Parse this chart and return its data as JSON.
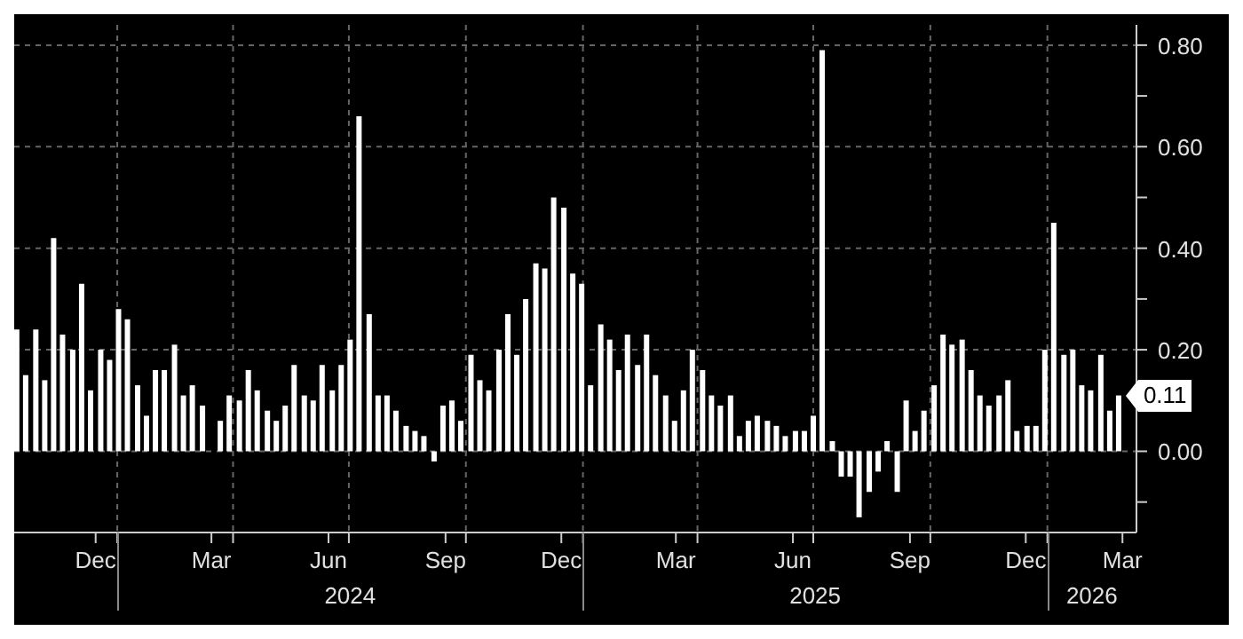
{
  "chart_data": {
    "type": "bar",
    "color": "#ffffff",
    "x": [
      "2023-10-14",
      "2023-10-21",
      "2023-10-29",
      "2023-11-05",
      "2023-11-12",
      "2023-11-19",
      "2023-11-27",
      "2023-12-04",
      "2023-12-11",
      "2023-12-19",
      "2023-12-26",
      "2024-01-02",
      "2024-01-09",
      "2024-01-17",
      "2024-01-24",
      "2024-01-31",
      "2024-02-07",
      "2024-02-15",
      "2024-02-22",
      "2024-02-29",
      "2024-03-08",
      "2024-03-15",
      "2024-03-22",
      "2024-03-29",
      "2024-04-06",
      "2024-04-13",
      "2024-04-20",
      "2024-04-28",
      "2024-05-05",
      "2024-05-12",
      "2024-05-19",
      "2024-05-27",
      "2024-06-03",
      "2024-06-10",
      "2024-06-18",
      "2024-06-25",
      "2024-07-02",
      "2024-07-09",
      "2024-07-17",
      "2024-07-24",
      "2024-07-31",
      "2024-08-07",
      "2024-08-15",
      "2024-08-22",
      "2024-08-29",
      "2024-09-06",
      "2024-09-13",
      "2024-09-20",
      "2024-09-27",
      "2024-10-05",
      "2024-10-12",
      "2024-10-19",
      "2024-10-27",
      "2024-11-03",
      "2024-11-10",
      "2024-11-17",
      "2024-11-25",
      "2024-12-02",
      "2024-12-09",
      "2024-12-17",
      "2024-12-24",
      "2024-12-31",
      "2025-01-07",
      "2025-01-15",
      "2025-01-22",
      "2025-01-29",
      "2025-02-05",
      "2025-02-13",
      "2025-02-20",
      "2025-02-27",
      "2025-03-07",
      "2025-03-14",
      "2025-03-21",
      "2025-03-28",
      "2025-04-05",
      "2025-04-12",
      "2025-04-19",
      "2025-04-27",
      "2025-05-04",
      "2025-05-11",
      "2025-05-18",
      "2025-05-26",
      "2025-06-02",
      "2025-06-09",
      "2025-06-17",
      "2025-06-24",
      "2025-07-01",
      "2025-07-08",
      "2025-07-16",
      "2025-07-23",
      "2025-07-30",
      "2025-08-06",
      "2025-08-14",
      "2025-08-21",
      "2025-08-28",
      "2025-09-05",
      "2025-09-12",
      "2025-09-19",
      "2025-09-26",
      "2025-10-04",
      "2025-10-11",
      "2025-10-18",
      "2025-10-26",
      "2025-11-02",
      "2025-11-09",
      "2025-11-16",
      "2025-11-24",
      "2025-12-01",
      "2025-12-08",
      "2025-12-16",
      "2025-12-23",
      "2025-12-30",
      "2026-01-06",
      "2026-01-14",
      "2026-01-21",
      "2026-01-28",
      "2026-02-04",
      "2026-02-12",
      "2026-02-19",
      "2026-02-26"
    ],
    "values": [
      0.24,
      0.15,
      0.24,
      0.14,
      0.42,
      0.23,
      0.2,
      0.33,
      0.12,
      0.2,
      0.18,
      0.28,
      0.26,
      0.13,
      0.07,
      0.16,
      0.16,
      0.21,
      0.11,
      0.13,
      0.09,
      0.0,
      0.06,
      0.11,
      0.1,
      0.16,
      0.12,
      0.08,
      0.06,
      0.09,
      0.17,
      0.11,
      0.1,
      0.17,
      0.12,
      0.17,
      0.22,
      0.66,
      0.27,
      0.11,
      0.11,
      0.08,
      0.05,
      0.04,
      0.03,
      -0.02,
      0.09,
      0.1,
      0.06,
      0.19,
      0.14,
      0.12,
      0.2,
      0.27,
      0.19,
      0.3,
      0.37,
      0.36,
      0.5,
      0.48,
      0.35,
      0.33,
      0.13,
      0.25,
      0.22,
      0.16,
      0.23,
      0.17,
      0.23,
      0.15,
      0.11,
      0.06,
      0.12,
      0.2,
      0.16,
      0.11,
      0.09,
      0.11,
      0.03,
      0.06,
      0.07,
      0.06,
      0.05,
      0.03,
      0.04,
      0.04,
      0.07,
      0.79,
      0.02,
      -0.05,
      -0.05,
      -0.13,
      -0.08,
      -0.04,
      0.02,
      -0.08,
      0.1,
      0.04,
      0.08,
      0.13,
      0.23,
      0.21,
      0.22,
      0.16,
      0.11,
      0.09,
      0.11,
      0.14,
      0.04,
      0.05,
      0.05,
      0.2,
      0.45,
      0.19,
      0.2,
      0.13,
      0.12,
      0.19,
      0.08,
      0.11
    ],
    "value_labels": [
      null,
      null,
      null,
      null,
      null,
      null,
      null,
      null,
      null,
      null,
      null,
      null,
      null,
      null,
      null,
      null,
      null,
      null,
      null,
      null,
      null,
      null,
      null,
      null,
      null,
      null,
      null,
      null,
      null,
      null,
      null,
      null,
      null,
      null,
      null,
      null,
      null,
      null,
      null,
      null,
      null,
      null,
      null,
      null,
      null,
      null,
      null,
      null,
      null,
      null,
      null,
      null,
      null,
      null,
      null,
      null,
      null,
      null,
      null,
      null,
      null,
      null,
      null,
      null,
      null,
      null,
      null,
      null,
      null,
      null,
      null,
      null,
      null,
      null,
      null,
      null,
      null,
      null,
      null,
      null,
      null,
      null,
      null,
      null,
      null,
      null,
      null,
      null,
      null,
      null,
      null,
      null,
      null,
      null,
      null,
      null,
      null,
      null,
      null,
      null,
      null,
      null,
      null,
      null,
      null,
      null,
      null,
      null,
      null,
      null,
      null,
      null,
      null,
      null,
      null,
      null,
      null,
      null,
      null,
      "0.11"
    ],
    "xlim": [
      "2023-10-12",
      "2026-03-12"
    ],
    "xticks": [
      {
        "value": "2023-12-15",
        "label": "Dec"
      },
      {
        "value": "2024-01-01",
        "label": null
      },
      {
        "value": "2024-03-15",
        "label": "Mar"
      },
      {
        "value": "2024-04-01",
        "label": null
      },
      {
        "value": "2024-06-15",
        "label": "Jun"
      },
      {
        "value": "2024-07-01",
        "label": null
      },
      {
        "value": "2024-09-15",
        "label": "Sep"
      },
      {
        "value": "2024-10-01",
        "label": null
      },
      {
        "value": "2024-12-15",
        "label": "Dec"
      },
      {
        "value": "2025-01-01",
        "label": null
      },
      {
        "value": "2025-03-15",
        "label": "Mar"
      },
      {
        "value": "2025-04-01",
        "label": null
      },
      {
        "value": "2025-06-15",
        "label": "Jun"
      },
      {
        "value": "2025-07-01",
        "label": null
      },
      {
        "value": "2025-09-15",
        "label": "Sep"
      },
      {
        "value": "2025-10-01",
        "label": null
      },
      {
        "value": "2025-12-15",
        "label": "Dec"
      },
      {
        "value": "2026-01-01",
        "label": null
      },
      {
        "value": "2026-03-01",
        "label": "Mar"
      }
    ],
    "ylim": [
      -0.16,
      0.84
    ],
    "yticks": [
      {
        "value": -0.1,
        "label": null
      },
      {
        "value": 0,
        "label": "0.00"
      },
      {
        "value": 0.1,
        "label": null
      },
      {
        "value": 0.2,
        "label": "0.20"
      },
      {
        "value": 0.3,
        "label": null
      },
      {
        "value": 0.4,
        "label": "0.40"
      },
      {
        "value": 0.5,
        "label": null
      },
      {
        "value": 0.6,
        "label": "0.60"
      },
      {
        "value": 0.7,
        "label": null
      },
      {
        "value": 0.8,
        "label": "0.80"
      }
    ],
    "grid": true,
    "annotations": [
      "2024",
      "2025",
      "2026"
    ]
  }
}
